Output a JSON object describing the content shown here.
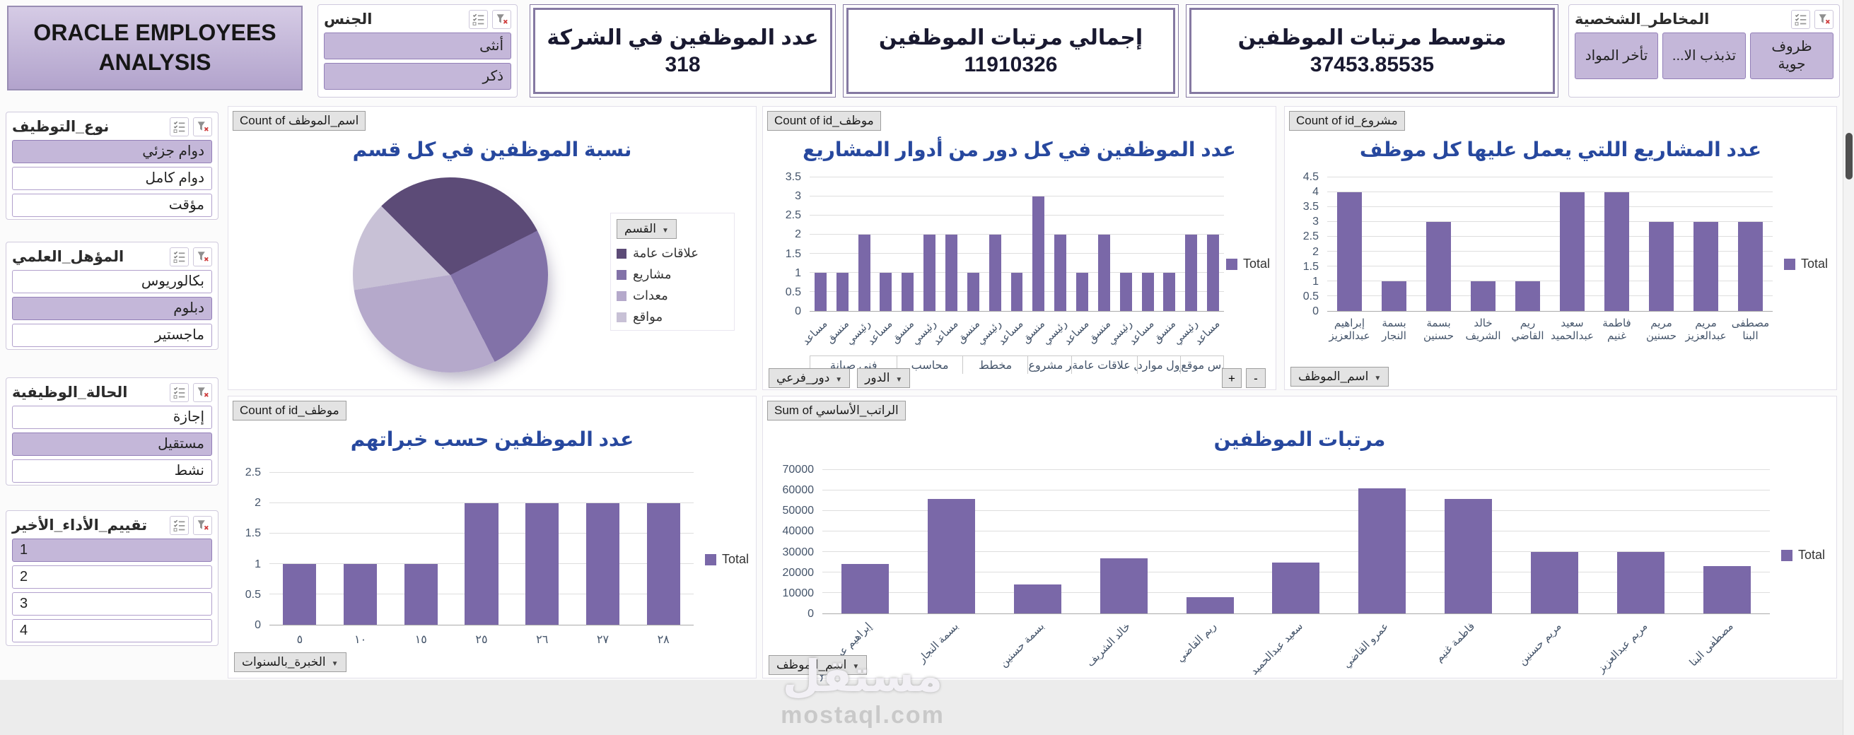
{
  "page": {
    "title_line1": "ORACLE EMPLOYEES",
    "title_line2": "ANALYSIS",
    "watermark_main": "مستقل",
    "watermark_sub": "mostaql.com"
  },
  "colors": {
    "accent_purple": "#7A68A8",
    "selected_fill": "#C4B7D9",
    "title_blue": "#27489E",
    "axis_text": "#44546A",
    "kpi_border": "#8579A2",
    "pie_colors": [
      "#5C4B77",
      "#8272A8",
      "#B5A9CB",
      "#C8C1D6"
    ]
  },
  "kpis": [
    {
      "title": "عدد الموظفين في الشركة",
      "value": "318"
    },
    {
      "title": "إجمالي مرتبات الموظفين",
      "value": "11910326"
    },
    {
      "title": "متوسط مرتبات الموظفين",
      "value": "37453.85535"
    }
  ],
  "slicers": {
    "gender": {
      "title": "الجنس",
      "items": [
        {
          "label": "أنثى",
          "selected": true
        },
        {
          "label": "ذكر",
          "selected": true
        }
      ]
    },
    "risks": {
      "title": "المخاطر_الشخصية",
      "items": [
        {
          "label": "ظروف جوية",
          "selected": true
        },
        {
          "label": "تذبذب الا...",
          "selected": true
        },
        {
          "label": "تأخر المواد",
          "selected": true
        }
      ]
    },
    "employment": {
      "title": "نوع_التوظيف",
      "items": [
        {
          "label": "دوام جزئي",
          "selected": true
        },
        {
          "label": "دوام كامل",
          "selected": false
        },
        {
          "label": "مؤقت",
          "selected": false
        }
      ]
    },
    "qualification": {
      "title": "المؤهل_العلمي",
      "items": [
        {
          "label": "بكالوريوس",
          "selected": false
        },
        {
          "label": "دبلوم",
          "selected": true
        },
        {
          "label": "ماجستير",
          "selected": false
        }
      ]
    },
    "status": {
      "title": "الحالة_الوظيفية",
      "items": [
        {
          "label": "إجازة",
          "selected": false
        },
        {
          "label": "مستقيل",
          "selected": true
        },
        {
          "label": "نشط",
          "selected": false
        }
      ]
    },
    "rating": {
      "title": "تقييم_الأداء_الأخير",
      "items": [
        {
          "label": "1",
          "selected": true
        },
        {
          "label": "2",
          "selected": false
        },
        {
          "label": "3",
          "selected": false
        },
        {
          "label": "4",
          "selected": false
        }
      ]
    }
  },
  "chart_data": [
    {
      "id": "dept-pie",
      "type": "pie",
      "title": "نسبة الموظفين في كل قسم",
      "field_button": "Count of اسم_الموظف",
      "legend_button": "القسم",
      "labels": [
        "علاقات عامة",
        "مشاريع",
        "معدات",
        "مواقع"
      ],
      "values": [
        30,
        25,
        30,
        15
      ],
      "start_angle": -45,
      "legend_position": "right"
    },
    {
      "id": "roles-bar",
      "type": "bar",
      "title": "عدد الموظفين في كل دور من أدوار المشاريع",
      "field_button": "Count of id_موظف",
      "legend": "Total",
      "ylim": [
        0,
        3.5
      ],
      "ystep": 0.5,
      "grid": true,
      "categories": [
        "مساعد",
        "منسق",
        "رئيسي",
        "مساعد",
        "منسق",
        "رئيسي",
        "مساعد",
        "منسق",
        "رئيسي",
        "مساعد",
        "منسق",
        "رئيسي",
        "مساعد",
        "منسق",
        "رئيسي",
        "مساعد",
        "منسق",
        "رئيسي",
        "مساعد"
      ],
      "values": [
        1,
        1,
        2,
        1,
        1,
        2,
        2,
        1,
        2,
        1,
        3,
        2,
        1,
        2,
        1,
        1,
        1,
        2,
        2
      ],
      "groups": [
        {
          "label": "فني صيانة",
          "span": 4
        },
        {
          "label": "محاسب",
          "span": 3
        },
        {
          "label": "مخطط",
          "span": 3
        },
        {
          "label": "مدير مشروع",
          "span": 2
        },
        {
          "label": "مسؤول علاقات عامة",
          "span": 3
        },
        {
          "label": "مسؤول موارد",
          "span": 2
        },
        {
          "label": "مهندس موقع",
          "span": 2
        }
      ],
      "axis_buttons": [
        "دور_فرعي",
        "الدور"
      ],
      "expand_buttons": [
        "+",
        "-"
      ],
      "label_mode": "rotated"
    },
    {
      "id": "projects-bar",
      "type": "bar",
      "title": "عدد المشاريع اللتي يعمل عليها كل موظف",
      "field_button": "Count of id_مشروع",
      "legend": "Total",
      "ylim": [
        0,
        4.5
      ],
      "ystep": 0.5,
      "grid": true,
      "categories": [
        "إبراهيم عبدالعزيز",
        "بسمة النجار",
        "بسمة حسنين",
        "خالد الشريف",
        "ريم القاضي",
        "سعيد عبدالحميد",
        "فاطمة غنيم",
        "مريم حسنين",
        "مريم عبدالعزيز",
        "مصطفى البنا"
      ],
      "values": [
        4,
        1,
        3,
        1,
        1,
        4,
        4,
        3,
        3,
        3
      ],
      "axis_buttons": [
        "اسم_الموظف"
      ],
      "label_mode": "twoline"
    },
    {
      "id": "experience-bar",
      "type": "bar",
      "title": "عدد الموظفين حسب خبراتهم",
      "field_button": "Count of id_موظف",
      "legend": "Total",
      "ylim": [
        0,
        2.5
      ],
      "ystep": 0.5,
      "grid": true,
      "categories": [
        "٥",
        "١٠",
        "١٥",
        "٢٥",
        "٢٦",
        "٢٧",
        "٢٨"
      ],
      "values": [
        1,
        1,
        1,
        2,
        2,
        2,
        2
      ],
      "axis_buttons": [
        "الخبرة_بالسنوات"
      ],
      "label_mode": "plain"
    },
    {
      "id": "salaries-bar",
      "type": "bar",
      "title": "مرتبات الموظفين",
      "field_button": "Sum of الراتب_الأساسي",
      "legend": "Total",
      "ylim": [
        0,
        70000
      ],
      "ystep": 10000,
      "grid": true,
      "categories": [
        "إبراهيم عبدالعزيز",
        "بسمة النجار",
        "بسمة حسنين",
        "خالد الشريف",
        "ريم القاضي",
        "سعيد عبدالحميد",
        "عمرو القاضي",
        "فاطمة غنيم",
        "مريم حسنين",
        "مريم عبدالعزيز",
        "مصطفى البنا"
      ],
      "values": [
        24000,
        56000,
        14000,
        27000,
        8000,
        25000,
        61000,
        56000,
        30000,
        30000,
        23000
      ],
      "axis_buttons": [
        "اسم_الموظف"
      ],
      "label_mode": "rotated"
    }
  ]
}
